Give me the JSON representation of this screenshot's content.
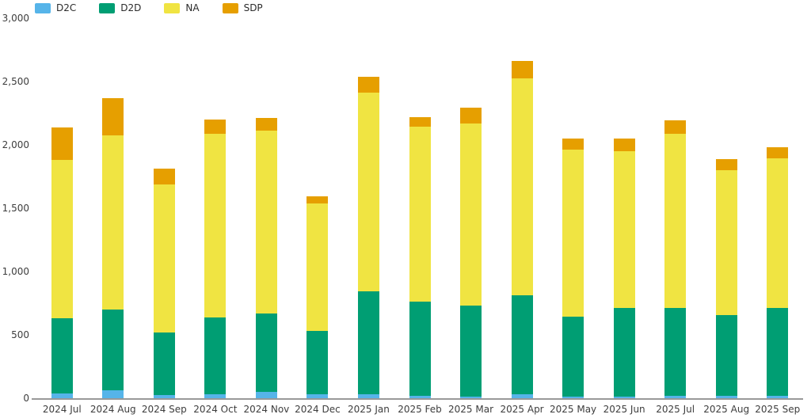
{
  "chart_data": {
    "type": "bar",
    "stacked": true,
    "title": "",
    "xlabel": "",
    "ylabel": "",
    "categories": [
      "2024 Jul",
      "2024 Aug",
      "2024 Sep",
      "2024 Oct",
      "2024 Nov",
      "2024 Dec",
      "2025 Jan",
      "2025 Feb",
      "2025 Mar",
      "2025 Apr",
      "2025 May",
      "2025 Jun",
      "2025 Jul",
      "2025 Aug",
      "2025 Sep"
    ],
    "series": [
      {
        "name": "D2C",
        "color": "#56B4E9",
        "values": [
          35,
          60,
          25,
          30,
          50,
          30,
          30,
          20,
          15,
          30,
          15,
          15,
          20,
          20,
          20
        ]
      },
      {
        "name": "D2D",
        "color": "#009E73",
        "values": [
          595,
          640,
          495,
          605,
          620,
          500,
          815,
          745,
          715,
          780,
          630,
          695,
          695,
          635,
          690
        ]
      },
      {
        "name": "NA",
        "color": "#F0E442",
        "values": [
          1250,
          1375,
          1170,
          1450,
          1445,
          1005,
          1570,
          1380,
          1440,
          1715,
          1315,
          1240,
          1370,
          1145,
          1185
        ]
      },
      {
        "name": "SDP",
        "color": "#E69F00",
        "values": [
          260,
          295,
          120,
          115,
          95,
          60,
          120,
          75,
          125,
          135,
          90,
          100,
          110,
          90,
          85
        ]
      }
    ],
    "totals": [
      2140,
      2370,
      1810,
      2200,
      2210,
      1595,
      2535,
      2220,
      2295,
      2660,
      2050,
      2050,
      2195,
      1890,
      1980
    ],
    "ylim": [
      0,
      3000
    ],
    "y_tick_values": [
      0,
      500,
      1000,
      1500,
      2000,
      2500,
      3000
    ],
    "y_tick_labels": [
      "0",
      "500",
      "1,000",
      "1,500",
      "2,000",
      "2,500",
      "3,000"
    ],
    "grid": false,
    "legend_position": "top-left",
    "axis_color": "#999999",
    "label_color": "#3d3d3d"
  }
}
